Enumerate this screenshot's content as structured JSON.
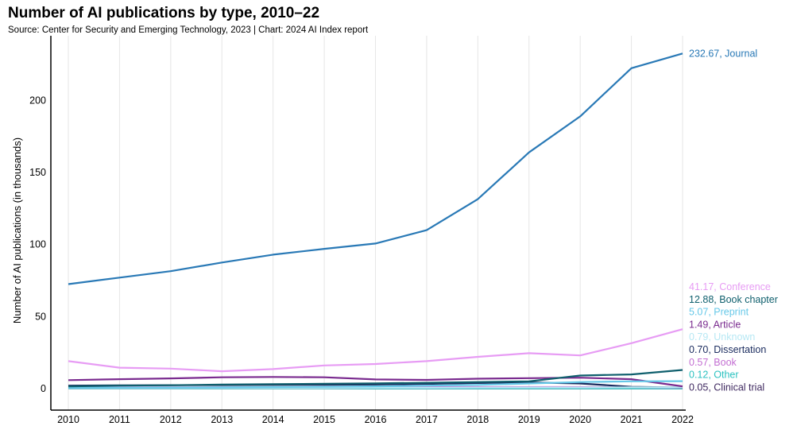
{
  "header": {
    "title": "Number of AI publications by type, 2010–22",
    "subtitle": "Source: Center for Security and Emerging Technology, 2023 | Chart: 2024 AI Index report"
  },
  "chart_data": {
    "type": "line",
    "title": "Number of AI publications by type, 2010–22",
    "xlabel": "",
    "ylabel": "Number of AI publications (in thousands)",
    "x": [
      2010,
      2011,
      2012,
      2013,
      2014,
      2015,
      2016,
      2017,
      2018,
      2019,
      2020,
      2021,
      2022
    ],
    "xticks": [
      "2010",
      "2011",
      "2012",
      "2013",
      "2014",
      "2015",
      "2016",
      "2017",
      "2018",
      "2019",
      "2020",
      "2021",
      "2022"
    ],
    "yticks": [
      "0",
      "50",
      "100",
      "150",
      "200"
    ],
    "ylim": [
      -15,
      245
    ],
    "grid": "vertical",
    "series": [
      {
        "name": "Journal",
        "end_label": "232.67, Journal",
        "color": "#2979b6",
        "values": [
          72.5,
          77,
          81.5,
          87.5,
          93,
          97,
          100.7,
          110,
          131.5,
          164,
          189,
          222.5,
          232.67
        ]
      },
      {
        "name": "Conference",
        "end_label": "41.17, Conference",
        "color": "#e79cf4",
        "values": [
          19,
          14.5,
          13.8,
          12,
          13.5,
          16,
          17,
          19,
          22,
          24.5,
          23,
          31.5,
          41.17
        ]
      },
      {
        "name": "Book chapter",
        "end_label": "12.88, Book chapter",
        "color": "#0f5f6d",
        "values": [
          1.5,
          2,
          2.3,
          2.7,
          3,
          3.3,
          3.6,
          4,
          4.5,
          5,
          9,
          9.8,
          12.88
        ]
      },
      {
        "name": "Preprint",
        "end_label": "5.07, Preprint",
        "color": "#66c8e8",
        "values": [
          0.5,
          0.6,
          0.7,
          0.8,
          1,
          1.2,
          1.5,
          2,
          2.5,
          3.5,
          4.5,
          5,
          5.07
        ]
      },
      {
        "name": "Article",
        "end_label": "1.49, Article",
        "color": "#7a2b8f",
        "values": [
          5.8,
          6.5,
          7,
          7.8,
          8,
          7.8,
          6.3,
          6,
          6.8,
          7.2,
          7.5,
          6.5,
          1.49
        ]
      },
      {
        "name": "Unknown",
        "end_label": "0.79, Unknown",
        "color": "#b7e8f4",
        "values": [
          0.3,
          0.3,
          0.3,
          0.4,
          0.4,
          0.4,
          0.5,
          0.5,
          0.6,
          0.7,
          0.7,
          0.8,
          0.79
        ]
      },
      {
        "name": "Dissertation",
        "end_label": "0.70, Dissertation",
        "color": "#1a2b5e",
        "values": [
          2,
          2.2,
          2.3,
          2.4,
          2.5,
          2.6,
          2.8,
          3.2,
          3.8,
          4.2,
          3.5,
          1.2,
          0.7
        ]
      },
      {
        "name": "Book",
        "end_label": "0.57, Book",
        "color": "#c36fd2",
        "values": [
          0.8,
          0.8,
          0.8,
          0.8,
          0.9,
          0.9,
          0.9,
          1,
          1,
          1,
          1,
          0.8,
          0.57
        ]
      },
      {
        "name": "Other",
        "end_label": "0.12, Other",
        "color": "#2cc2c0",
        "values": [
          0.1,
          0.1,
          0.1,
          0.1,
          0.1,
          0.1,
          0.1,
          0.1,
          0.1,
          0.1,
          0.1,
          0.1,
          0.12
        ]
      },
      {
        "name": "Clinical trial",
        "end_label": "0.05, Clinical trial",
        "color": "#3f2960",
        "values": [
          0.05,
          0.05,
          0.05,
          0.05,
          0.05,
          0.05,
          0.05,
          0.05,
          0.05,
          0.05,
          0.05,
          0.05,
          0.05
        ]
      }
    ]
  }
}
